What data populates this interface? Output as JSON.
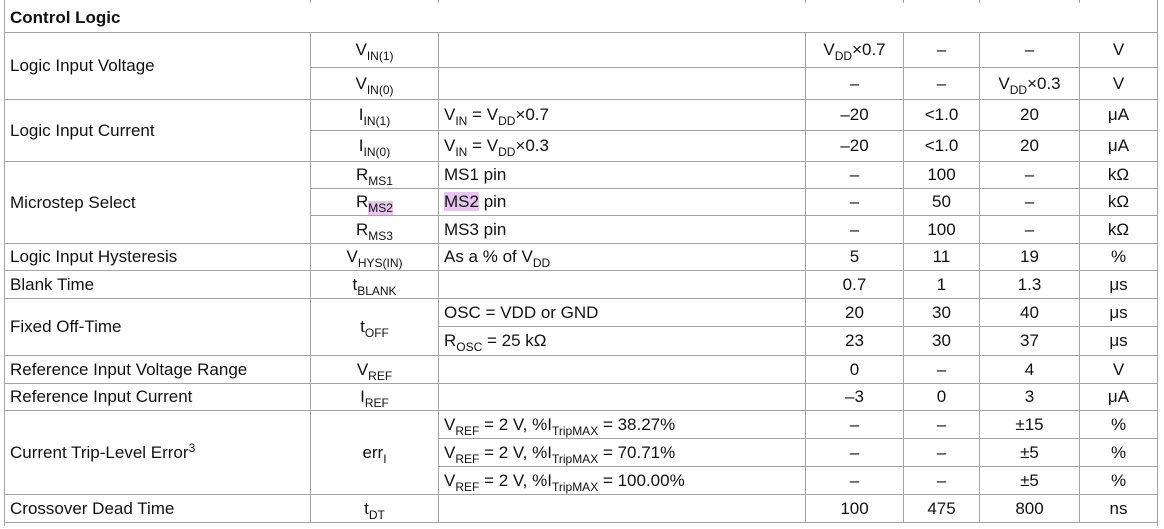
{
  "header": {
    "title": "Control Logic"
  },
  "groups": [
    {
      "parameter": [
        "Logic Input Voltage"
      ],
      "lines": [
        {
          "symbol": [
            "V",
            {
              "sub": "IN(1)"
            }
          ],
          "condition": [],
          "min": [
            "V",
            {
              "sub": "DD"
            },
            "×0.7"
          ],
          "typ": [
            "–"
          ],
          "max": [
            "–"
          ],
          "unit": [
            "V"
          ]
        },
        {
          "symbol": [
            "V",
            {
              "sub": "IN(0)"
            }
          ],
          "condition": [],
          "min": [
            "–"
          ],
          "typ": [
            "–"
          ],
          "max": [
            "V",
            {
              "sub": "DD"
            },
            "×0.3"
          ],
          "unit": [
            "V"
          ]
        }
      ]
    },
    {
      "parameter": [
        "Logic Input Current"
      ],
      "lines": [
        {
          "symbol": [
            "I",
            {
              "sub": "IN(1)"
            }
          ],
          "condition": [
            "V",
            {
              "sub": "IN"
            },
            " = V",
            {
              "sub": "DD"
            },
            "×0.7"
          ],
          "min": [
            "–20"
          ],
          "typ": [
            "<1.0"
          ],
          "max": [
            "20"
          ],
          "unit": [
            "μA"
          ]
        },
        {
          "symbol": [
            "I",
            {
              "sub": "IN(0)"
            }
          ],
          "condition": [
            "V",
            {
              "sub": "IN"
            },
            " = V",
            {
              "sub": "DD"
            },
            "×0.3"
          ],
          "min": [
            "–20"
          ],
          "typ": [
            "<1.0"
          ],
          "max": [
            "20"
          ],
          "unit": [
            "μA"
          ]
        }
      ]
    },
    {
      "parameter": [
        "Microstep Select"
      ],
      "lines": [
        {
          "symbol": [
            "R",
            {
              "sub": "MS1"
            }
          ],
          "condition": [
            "MS1 pin"
          ],
          "min": [
            "–"
          ],
          "typ": [
            "100"
          ],
          "max": [
            "–"
          ],
          "unit": [
            "kΩ"
          ]
        },
        {
          "symbol": [
            "R",
            {
              "sub_mark": "MS2"
            }
          ],
          "condition": [
            {
              "mark": "MS2"
            },
            " pin"
          ],
          "min": [
            "–"
          ],
          "typ": [
            "50"
          ],
          "max": [
            "–"
          ],
          "unit": [
            "kΩ"
          ]
        },
        {
          "symbol": [
            "R",
            {
              "sub": "MS3"
            }
          ],
          "condition": [
            "MS3 pin"
          ],
          "min": [
            "–"
          ],
          "typ": [
            "100"
          ],
          "max": [
            "–"
          ],
          "unit": [
            "kΩ"
          ]
        }
      ]
    },
    {
      "parameter": [
        "Logic Input Hysteresis"
      ],
      "lines": [
        {
          "symbol": [
            "V",
            {
              "sub": "HYS(IN)"
            }
          ],
          "condition": [
            "As a % of V",
            {
              "sub": "DD"
            }
          ],
          "min": [
            "5"
          ],
          "typ": [
            "11"
          ],
          "max": [
            "19"
          ],
          "unit": [
            "%"
          ]
        }
      ]
    },
    {
      "parameter": [
        "Blank Time"
      ],
      "lines": [
        {
          "symbol": [
            "t",
            {
              "sub": "BLANK"
            }
          ],
          "condition": [],
          "min": [
            "0.7"
          ],
          "typ": [
            "1"
          ],
          "max": [
            "1.3"
          ],
          "unit": [
            "μs"
          ]
        }
      ]
    },
    {
      "parameter": [
        "Fixed Off-Time"
      ],
      "symbol": [
        "t",
        {
          "sub": "OFF"
        }
      ],
      "lines": [
        {
          "condition": [
            "OSC = VDD or GND"
          ],
          "min": [
            "20"
          ],
          "typ": [
            "30"
          ],
          "max": [
            "40"
          ],
          "unit": [
            "μs"
          ]
        },
        {
          "condition": [
            "R",
            {
              "sub": "OSC"
            },
            " = 25 kΩ"
          ],
          "min": [
            "23"
          ],
          "typ": [
            "30"
          ],
          "max": [
            "37"
          ],
          "unit": [
            "μs"
          ]
        }
      ]
    },
    {
      "parameter": [
        "Reference Input Voltage Range"
      ],
      "lines": [
        {
          "symbol": [
            "V",
            {
              "sub": "REF"
            }
          ],
          "condition": [],
          "min": [
            "0"
          ],
          "typ": [
            "–"
          ],
          "max": [
            "4"
          ],
          "unit": [
            "V"
          ]
        }
      ]
    },
    {
      "parameter": [
        "Reference Input Current"
      ],
      "lines": [
        {
          "symbol": [
            "I",
            {
              "sub": "REF"
            }
          ],
          "condition": [],
          "min": [
            "–3"
          ],
          "typ": [
            "0"
          ],
          "max": [
            "3"
          ],
          "unit": [
            "μA"
          ]
        }
      ]
    },
    {
      "parameter": [
        "Current Trip-Level Error",
        {
          "sup": "3"
        }
      ],
      "symbol": [
        "err",
        {
          "sub": "I"
        }
      ],
      "lines": [
        {
          "condition": [
            "V",
            {
              "sub": "REF"
            },
            " = 2 V, %I",
            {
              "sub": "TripMAX"
            },
            " = 38.27%"
          ],
          "min": [
            "–"
          ],
          "typ": [
            "–"
          ],
          "max": [
            "±15"
          ],
          "unit": [
            "%"
          ]
        },
        {
          "condition": [
            "V",
            {
              "sub": "REF"
            },
            " = 2 V, %I",
            {
              "sub": "TripMAX"
            },
            " = 70.71%"
          ],
          "min": [
            "–"
          ],
          "typ": [
            "–"
          ],
          "max": [
            "±5"
          ],
          "unit": [
            "%"
          ]
        },
        {
          "condition": [
            "V",
            {
              "sub": "REF"
            },
            " = 2 V, %I",
            {
              "sub": "TripMAX"
            },
            " = 100.00%"
          ],
          "min": [
            "–"
          ],
          "typ": [
            "–"
          ],
          "max": [
            "±5"
          ],
          "unit": [
            "%"
          ]
        }
      ]
    },
    {
      "parameter": [
        "Crossover Dead Time"
      ],
      "lines": [
        {
          "symbol": [
            "t",
            {
              "sub": "DT"
            }
          ],
          "condition": [],
          "min": [
            "100"
          ],
          "typ": [
            "475"
          ],
          "max": [
            "800"
          ],
          "unit": [
            "ns"
          ]
        }
      ]
    }
  ]
}
